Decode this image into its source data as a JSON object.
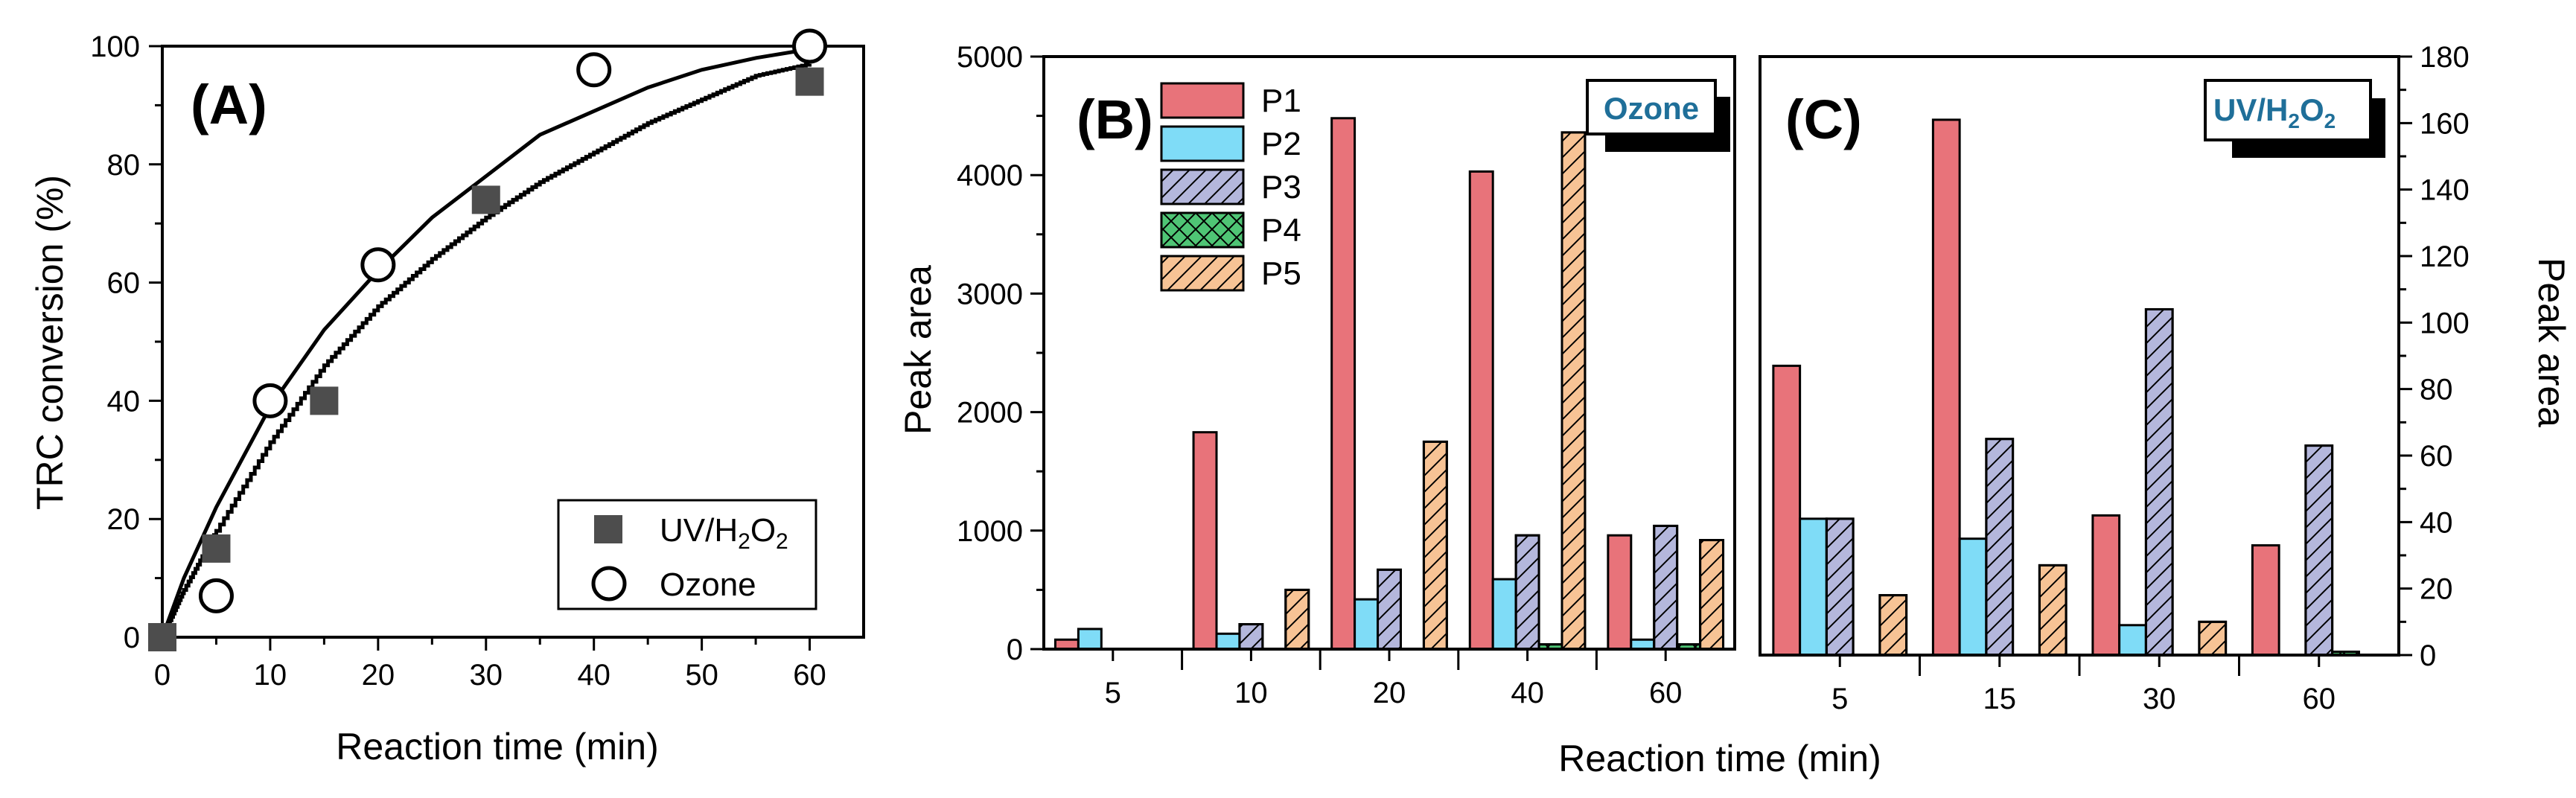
{
  "colors": {
    "P1": "#e8737a",
    "P2": "#7fdcf7",
    "P3": "#b4b7dc",
    "P4": "#4fc575",
    "P5": "#f7c395",
    "marker_fill": "#4d4d4d",
    "badge_text": "#1f6f99"
  },
  "chart_data": [
    {
      "type": "scatter",
      "panel_label": "(A)",
      "title": "",
      "xlabel": "Reaction time (min)",
      "ylabel": "TRC conversion (%)",
      "xlim": [
        0,
        65
      ],
      "ylim": [
        0,
        100
      ],
      "xticks": [
        "0",
        "10",
        "20",
        "30",
        "40",
        "50",
        "60"
      ],
      "yticks": [
        "0",
        "20",
        "40",
        "60",
        "80",
        "100"
      ],
      "legend_position": "bottom-right",
      "series": [
        {
          "name": "UV/H2O2",
          "legend_main": "UV/H",
          "legend_sub": "2",
          "legend_mid": "O",
          "legend_sub2": "2",
          "marker": "filled-square",
          "points": [
            [
              0,
              0
            ],
            [
              5,
              15
            ],
            [
              15,
              40
            ],
            [
              30,
              74
            ],
            [
              60,
              94
            ]
          ],
          "fit_style": "stepped",
          "fit": [
            [
              0,
              0
            ],
            [
              2,
              8
            ],
            [
              5,
              18
            ],
            [
              10,
              33
            ],
            [
              15,
              46
            ],
            [
              20,
              56
            ],
            [
              25,
              64
            ],
            [
              30,
              71
            ],
            [
              35,
              77
            ],
            [
              40,
              82
            ],
            [
              45,
              87
            ],
            [
              50,
              91
            ],
            [
              55,
              95
            ],
            [
              60,
              97
            ]
          ]
        },
        {
          "name": "Ozone",
          "legend_main": "Ozone",
          "marker": "open-circle",
          "points": [
            [
              5,
              7
            ],
            [
              10,
              40
            ],
            [
              20,
              63
            ],
            [
              40,
              96
            ],
            [
              60,
              100
            ]
          ],
          "fit_style": "smooth",
          "fit": [
            [
              0,
              0
            ],
            [
              2,
              10
            ],
            [
              5,
              22
            ],
            [
              10,
              39
            ],
            [
              15,
              52
            ],
            [
              20,
              62
            ],
            [
              25,
              71
            ],
            [
              30,
              78
            ],
            [
              35,
              85
            ],
            [
              40,
              89
            ],
            [
              45,
              93
            ],
            [
              50,
              96
            ],
            [
              55,
              98
            ],
            [
              60,
              99.5
            ]
          ]
        }
      ]
    },
    {
      "type": "bar",
      "panel_label": "(B)",
      "badge": "Ozone",
      "xlabel": "Reaction time (min)",
      "ylabel": "Peak area",
      "ylim": [
        0,
        5000
      ],
      "yticks": [
        "0",
        "1000",
        "2000",
        "3000",
        "4000",
        "5000"
      ],
      "categories": [
        "5",
        "10",
        "20",
        "40",
        "60"
      ],
      "series": [
        {
          "name": "P1",
          "values": [
            80,
            1830,
            4480,
            4030,
            960
          ]
        },
        {
          "name": "P2",
          "values": [
            170,
            130,
            420,
            590,
            80
          ]
        },
        {
          "name": "P3",
          "values": [
            0,
            210,
            670,
            960,
            1040
          ]
        },
        {
          "name": "P4",
          "values": [
            0,
            0,
            0,
            40,
            40
          ]
        },
        {
          "name": "P5",
          "values": [
            0,
            500,
            1750,
            4360,
            920
          ]
        }
      ]
    },
    {
      "type": "bar",
      "panel_label": "(C)",
      "badge_main": "UV/H",
      "badge_sub": "2",
      "badge_mid": "O",
      "badge_sub2": "2",
      "xlabel": "Reaction time (min)",
      "ylabel": "Peak area",
      "ylim": [
        0,
        180
      ],
      "yticks": [
        "0",
        "20",
        "40",
        "60",
        "80",
        "100",
        "120",
        "140",
        "160",
        "180"
      ],
      "categories": [
        "5",
        "15",
        "30",
        "60"
      ],
      "series": [
        {
          "name": "P1",
          "values": [
            87,
            161,
            42,
            33
          ]
        },
        {
          "name": "P2",
          "values": [
            41,
            35,
            9,
            0
          ]
        },
        {
          "name": "P3",
          "values": [
            41,
            65,
            104,
            63
          ]
        },
        {
          "name": "P4",
          "values": [
            0,
            0,
            0,
            1
          ]
        },
        {
          "name": "P5",
          "values": [
            18,
            27,
            10,
            0
          ]
        }
      ]
    }
  ],
  "legend_bc": [
    "P1",
    "P2",
    "P3",
    "P4",
    "P5"
  ],
  "shared_xlabel": "Reaction time (min)"
}
